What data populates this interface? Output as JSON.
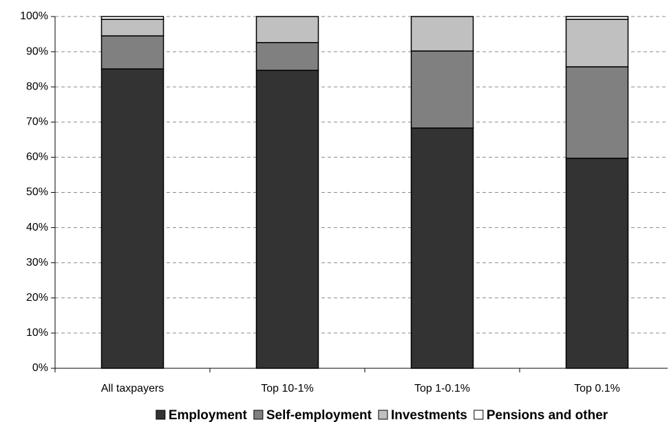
{
  "chart_data": {
    "type": "stacked-bar",
    "categories": [
      "All taxpayers",
      "Top 10-1%",
      "Top 1-0.1%",
      "Top 0.1%"
    ],
    "series": [
      {
        "name": "Employment",
        "color": "#333333",
        "values": [
          85.1,
          84.7,
          68.3,
          59.7
        ]
      },
      {
        "name": "Self-employment",
        "color": "#808080",
        "values": [
          9.4,
          7.9,
          21.9,
          26.0
        ]
      },
      {
        "name": "Investments",
        "color": "#c0c0c0",
        "values": [
          4.7,
          7.4,
          9.8,
          13.5
        ]
      },
      {
        "name": "Pensions and other",
        "color": "#ffffff",
        "values": [
          0.8,
          0.0,
          0.0,
          0.8
        ]
      }
    ],
    "ylim": [
      0,
      100
    ],
    "yticks": [
      {
        "value": 0,
        "label": "0%"
      },
      {
        "value": 10,
        "label": "10%"
      },
      {
        "value": 20,
        "label": "20%"
      },
      {
        "value": 30,
        "label": "30%"
      },
      {
        "value": 40,
        "label": "40%"
      },
      {
        "value": 50,
        "label": "50%"
      },
      {
        "value": 60,
        "label": "60%"
      },
      {
        "value": 70,
        "label": "70%"
      },
      {
        "value": 80,
        "label": "80%"
      },
      {
        "value": 90,
        "label": "90%"
      },
      {
        "value": 100,
        "label": "100%"
      }
    ],
    "grid": true,
    "legend": "bottom"
  }
}
